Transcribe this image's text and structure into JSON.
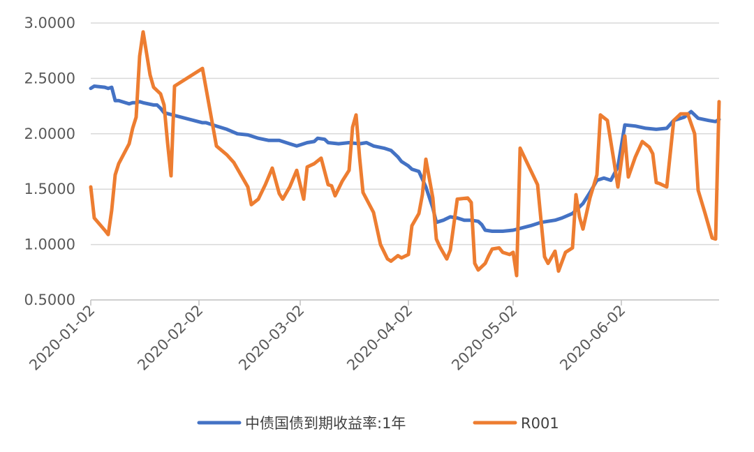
{
  "chart_data": {
    "type": "line",
    "title": "",
    "xlabel": "",
    "ylabel": "",
    "x_range": [
      "2020-01-02",
      "2020-06-30"
    ],
    "ylim": [
      0.5,
      3.0
    ],
    "y_ticks": [
      "0.5000",
      "1.0000",
      "1.5000",
      "2.0000",
      "2.5000",
      "3.0000"
    ],
    "x_ticks": [
      "2020-01-02",
      "2020-02-02",
      "2020-03-02",
      "2020-04-02",
      "2020-05-02",
      "2020-06-02"
    ],
    "grid": "horizontal",
    "legend_position": "bottom",
    "series": [
      {
        "name": "中债国债到期收益率:1年",
        "color": "#4472C4",
        "points": [
          [
            "2020-01-02",
            2.41
          ],
          [
            "2020-01-03",
            2.43
          ],
          [
            "2020-01-06",
            2.42
          ],
          [
            "2020-01-07",
            2.41
          ],
          [
            "2020-01-08",
            2.42
          ],
          [
            "2020-01-09",
            2.3
          ],
          [
            "2020-01-10",
            2.3
          ],
          [
            "2020-01-13",
            2.27
          ],
          [
            "2020-01-14",
            2.28
          ],
          [
            "2020-01-15",
            2.28
          ],
          [
            "2020-01-16",
            2.29
          ],
          [
            "2020-01-17",
            2.28
          ],
          [
            "2020-01-20",
            2.26
          ],
          [
            "2020-01-21",
            2.26
          ],
          [
            "2020-01-22",
            2.23
          ],
          [
            "2020-01-23",
            2.19
          ],
          [
            "2020-02-03",
            2.1
          ],
          [
            "2020-02-04",
            2.1
          ],
          [
            "2020-02-07",
            2.07
          ],
          [
            "2020-02-10",
            2.04
          ],
          [
            "2020-02-13",
            2.0
          ],
          [
            "2020-02-16",
            1.99
          ],
          [
            "2020-02-19",
            1.96
          ],
          [
            "2020-02-22",
            1.94
          ],
          [
            "2020-02-25",
            1.94
          ],
          [
            "2020-02-28",
            1.91
          ],
          [
            "2020-03-01",
            1.89
          ],
          [
            "2020-03-02",
            1.9
          ],
          [
            "2020-03-04",
            1.92
          ],
          [
            "2020-03-06",
            1.93
          ],
          [
            "2020-03-07",
            1.96
          ],
          [
            "2020-03-09",
            1.95
          ],
          [
            "2020-03-10",
            1.92
          ],
          [
            "2020-03-13",
            1.91
          ],
          [
            "2020-03-16",
            1.92
          ],
          [
            "2020-03-19",
            1.91
          ],
          [
            "2020-03-21",
            1.92
          ],
          [
            "2020-03-23",
            1.89
          ],
          [
            "2020-03-26",
            1.87
          ],
          [
            "2020-03-28",
            1.85
          ],
          [
            "2020-03-30",
            1.79
          ],
          [
            "2020-03-31",
            1.75
          ],
          [
            "2020-04-01",
            1.73
          ],
          [
            "2020-04-02",
            1.71
          ],
          [
            "2020-04-03",
            1.68
          ],
          [
            "2020-04-05",
            1.66
          ],
          [
            "2020-04-07",
            1.52
          ],
          [
            "2020-04-09",
            1.33
          ],
          [
            "2020-04-10",
            1.2
          ],
          [
            "2020-04-12",
            1.22
          ],
          [
            "2020-04-14",
            1.25
          ],
          [
            "2020-04-16",
            1.24
          ],
          [
            "2020-04-18",
            1.22
          ],
          [
            "2020-04-20",
            1.22
          ],
          [
            "2020-04-22",
            1.21
          ],
          [
            "2020-04-23",
            1.18
          ],
          [
            "2020-04-24",
            1.13
          ],
          [
            "2020-04-26",
            1.12
          ],
          [
            "2020-04-29",
            1.12
          ],
          [
            "2020-05-02",
            1.13
          ],
          [
            "2020-05-07",
            1.17
          ],
          [
            "2020-05-10",
            1.2
          ],
          [
            "2020-05-14",
            1.22
          ],
          [
            "2020-05-16",
            1.24
          ],
          [
            "2020-05-19",
            1.28
          ],
          [
            "2020-05-22",
            1.37
          ],
          [
            "2020-05-24",
            1.47
          ],
          [
            "2020-05-26",
            1.58
          ],
          [
            "2020-05-28",
            1.6
          ],
          [
            "2020-05-30",
            1.58
          ],
          [
            "2020-06-01",
            1.7
          ],
          [
            "2020-06-03",
            2.08
          ],
          [
            "2020-06-06",
            2.07
          ],
          [
            "2020-06-09",
            2.05
          ],
          [
            "2020-06-12",
            2.04
          ],
          [
            "2020-06-15",
            2.05
          ],
          [
            "2020-06-17",
            2.12
          ],
          [
            "2020-06-20",
            2.15
          ],
          [
            "2020-06-22",
            2.2
          ],
          [
            "2020-06-24",
            2.14
          ],
          [
            "2020-06-27",
            2.12
          ],
          [
            "2020-06-29",
            2.11
          ],
          [
            "2020-06-30",
            2.13
          ]
        ]
      },
      {
        "name": "R001",
        "color": "#ED7D31",
        "points": [
          [
            "2020-01-02",
            1.52
          ],
          [
            "2020-01-03",
            1.24
          ],
          [
            "2020-01-06",
            1.13
          ],
          [
            "2020-01-07",
            1.09
          ],
          [
            "2020-01-08",
            1.31
          ],
          [
            "2020-01-09",
            1.63
          ],
          [
            "2020-01-10",
            1.73
          ],
          [
            "2020-01-13",
            1.91
          ],
          [
            "2020-01-14",
            2.05
          ],
          [
            "2020-01-15",
            2.15
          ],
          [
            "2020-01-16",
            2.7
          ],
          [
            "2020-01-17",
            2.92
          ],
          [
            "2020-01-19",
            2.53
          ],
          [
            "2020-01-20",
            2.42
          ],
          [
            "2020-01-22",
            2.36
          ],
          [
            "2020-01-23",
            2.26
          ],
          [
            "2020-01-24",
            1.92
          ],
          [
            "2020-01-25",
            1.62
          ],
          [
            "2020-01-26",
            2.43
          ],
          [
            "2020-02-03",
            2.59
          ],
          [
            "2020-02-07",
            1.89
          ],
          [
            "2020-02-10",
            1.81
          ],
          [
            "2020-02-12",
            1.74
          ],
          [
            "2020-02-14",
            1.63
          ],
          [
            "2020-02-16",
            1.52
          ],
          [
            "2020-02-17",
            1.36
          ],
          [
            "2020-02-19",
            1.41
          ],
          [
            "2020-02-21",
            1.54
          ],
          [
            "2020-02-23",
            1.69
          ],
          [
            "2020-02-25",
            1.46
          ],
          [
            "2020-02-26",
            1.41
          ],
          [
            "2020-02-28",
            1.52
          ],
          [
            "2020-03-01",
            1.67
          ],
          [
            "2020-03-03",
            1.41
          ],
          [
            "2020-03-04",
            1.7
          ],
          [
            "2020-03-06",
            1.73
          ],
          [
            "2020-03-08",
            1.78
          ],
          [
            "2020-03-10",
            1.54
          ],
          [
            "2020-03-11",
            1.53
          ],
          [
            "2020-03-12",
            1.44
          ],
          [
            "2020-03-14",
            1.57
          ],
          [
            "2020-03-16",
            1.67
          ],
          [
            "2020-03-17",
            2.06
          ],
          [
            "2020-03-18",
            2.17
          ],
          [
            "2020-03-19",
            1.79
          ],
          [
            "2020-03-20",
            1.47
          ],
          [
            "2020-03-23",
            1.29
          ],
          [
            "2020-03-25",
            1.0
          ],
          [
            "2020-03-27",
            0.87
          ],
          [
            "2020-03-28",
            0.85
          ],
          [
            "2020-03-30",
            0.9
          ],
          [
            "2020-03-31",
            0.88
          ],
          [
            "2020-04-02",
            0.91
          ],
          [
            "2020-04-03",
            1.17
          ],
          [
            "2020-04-05",
            1.28
          ],
          [
            "2020-04-06",
            1.45
          ],
          [
            "2020-04-07",
            1.77
          ],
          [
            "2020-04-09",
            1.42
          ],
          [
            "2020-04-10",
            1.05
          ],
          [
            "2020-04-11",
            0.98
          ],
          [
            "2020-04-13",
            0.87
          ],
          [
            "2020-04-14",
            0.95
          ],
          [
            "2020-04-16",
            1.41
          ],
          [
            "2020-04-19",
            1.42
          ],
          [
            "2020-04-20",
            1.38
          ],
          [
            "2020-04-21",
            0.83
          ],
          [
            "2020-04-22",
            0.77
          ],
          [
            "2020-04-24",
            0.83
          ],
          [
            "2020-04-25",
            0.9
          ],
          [
            "2020-04-26",
            0.96
          ],
          [
            "2020-04-28",
            0.97
          ],
          [
            "2020-04-29",
            0.93
          ],
          [
            "2020-05-01",
            0.91
          ],
          [
            "2020-05-02",
            0.93
          ],
          [
            "2020-05-03",
            0.72
          ],
          [
            "2020-05-04",
            1.87
          ],
          [
            "2020-05-09",
            1.54
          ],
          [
            "2020-05-11",
            0.89
          ],
          [
            "2020-05-12",
            0.83
          ],
          [
            "2020-05-14",
            0.94
          ],
          [
            "2020-05-15",
            0.76
          ],
          [
            "2020-05-17",
            0.93
          ],
          [
            "2020-05-19",
            0.97
          ],
          [
            "2020-05-20",
            1.45
          ],
          [
            "2020-05-21",
            1.25
          ],
          [
            "2020-05-22",
            1.14
          ],
          [
            "2020-05-24",
            1.42
          ],
          [
            "2020-05-26",
            1.63
          ],
          [
            "2020-05-27",
            2.17
          ],
          [
            "2020-05-29",
            2.12
          ],
          [
            "2020-05-31",
            1.73
          ],
          [
            "2020-06-01",
            1.52
          ],
          [
            "2020-06-03",
            1.98
          ],
          [
            "2020-06-04",
            1.61
          ],
          [
            "2020-06-06",
            1.79
          ],
          [
            "2020-06-08",
            1.93
          ],
          [
            "2020-06-10",
            1.88
          ],
          [
            "2020-06-11",
            1.82
          ],
          [
            "2020-06-12",
            1.56
          ],
          [
            "2020-06-13",
            1.55
          ],
          [
            "2020-06-15",
            1.52
          ],
          [
            "2020-06-17",
            2.12
          ],
          [
            "2020-06-19",
            2.18
          ],
          [
            "2020-06-21",
            2.18
          ],
          [
            "2020-06-23",
            2.0
          ],
          [
            "2020-06-24",
            1.49
          ],
          [
            "2020-06-26",
            1.28
          ],
          [
            "2020-06-28",
            1.06
          ],
          [
            "2020-06-29",
            1.05
          ],
          [
            "2020-06-30",
            2.29
          ]
        ]
      }
    ]
  }
}
